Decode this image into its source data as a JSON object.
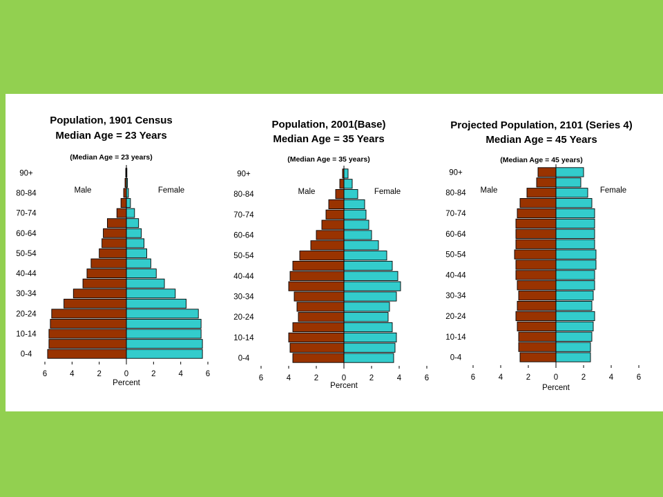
{
  "colors": {
    "male": "#993300",
    "female": "#33cccc",
    "background": "#92d050",
    "panel": "#ffffff"
  },
  "chart_data": [
    {
      "type": "bar",
      "title_line1": "Population, 1901 Census",
      "title_line2": "Median Age = 23 Years",
      "subtitle": "(Median Age = 23 years)",
      "male_label": "Male",
      "female_label": "Female",
      "xlabel": "Percent",
      "xlim": [
        -6,
        6
      ],
      "xticks": [
        6,
        4,
        2,
        0,
        2,
        4,
        6
      ],
      "age_groups": [
        "0-4",
        "5-9",
        "10-14",
        "15-19",
        "20-24",
        "25-29",
        "30-34",
        "35-39",
        "40-44",
        "45-49",
        "50-54",
        "55-59",
        "60-64",
        "65-69",
        "70-74",
        "75-79",
        "80-84",
        "85-89",
        "90+"
      ],
      "visible_tick_labels": [
        "0-4",
        "10-14",
        "20-24",
        "30-34",
        "40-44",
        "50-54",
        "60-64",
        "70-74",
        "80-84",
        "90+"
      ],
      "series": [
        {
          "name": "Male",
          "values": [
            5.8,
            5.7,
            5.7,
            5.6,
            5.5,
            4.6,
            3.9,
            3.2,
            2.9,
            2.6,
            2.0,
            1.8,
            1.7,
            1.4,
            0.7,
            0.4,
            0.2,
            0.1,
            0.05
          ]
        },
        {
          "name": "Female",
          "values": [
            5.6,
            5.6,
            5.5,
            5.5,
            5.3,
            4.4,
            3.6,
            2.8,
            2.2,
            1.8,
            1.5,
            1.3,
            1.1,
            0.9,
            0.6,
            0.3,
            0.15,
            0.08,
            0.04
          ]
        }
      ]
    },
    {
      "type": "bar",
      "title_line1": "Population, 2001(Base)",
      "title_line2": "Median Age = 35 Years",
      "subtitle": "(Median Age = 35 years)",
      "male_label": "Male",
      "female_label": "Female",
      "xlabel": "Percent",
      "xlim": [
        -6,
        6
      ],
      "xticks": [
        6,
        4,
        2,
        0,
        2,
        4,
        6
      ],
      "age_groups": [
        "0-4",
        "5-9",
        "10-14",
        "15-19",
        "20-24",
        "25-29",
        "30-34",
        "35-39",
        "40-44",
        "45-49",
        "50-54",
        "55-59",
        "60-64",
        "65-69",
        "70-74",
        "75-79",
        "80-84",
        "85-89",
        "90+"
      ],
      "visible_tick_labels": [
        "0-4",
        "10-14",
        "20-24",
        "30-34",
        "40-44",
        "50-54",
        "60-64",
        "70-74",
        "80-84",
        "90+"
      ],
      "series": [
        {
          "name": "Male",
          "values": [
            3.7,
            3.9,
            4.0,
            3.7,
            3.3,
            3.4,
            3.6,
            4.0,
            3.9,
            3.7,
            3.2,
            2.4,
            2.0,
            1.6,
            1.3,
            1.1,
            0.6,
            0.3,
            0.1
          ]
        },
        {
          "name": "Female",
          "values": [
            3.6,
            3.7,
            3.8,
            3.5,
            3.2,
            3.3,
            3.8,
            4.1,
            3.9,
            3.5,
            3.1,
            2.5,
            2.0,
            1.8,
            1.6,
            1.5,
            1.0,
            0.6,
            0.3
          ]
        }
      ]
    },
    {
      "type": "bar",
      "title_line1": "Projected Population, 2101 (Series 4)",
      "title_line2": "Median Age = 45 Years",
      "subtitle": "(Median Age = 45 years)",
      "male_label": "Male",
      "female_label": "Female",
      "xlabel": "Percent",
      "xlim": [
        -6,
        6
      ],
      "xticks": [
        6,
        4,
        2,
        0,
        2,
        4,
        6
      ],
      "age_groups": [
        "0-4",
        "5-9",
        "10-14",
        "15-19",
        "20-24",
        "25-29",
        "30-34",
        "35-39",
        "40-44",
        "45-49",
        "50-54",
        "55-59",
        "60-64",
        "65-69",
        "70-74",
        "75-79",
        "80-84",
        "85-89",
        "90+"
      ],
      "visible_tick_labels": [
        "0-4",
        "10-14",
        "20-24",
        "30-34",
        "40-44",
        "50-54",
        "60-64",
        "70-74",
        "80-84",
        "90+"
      ],
      "series": [
        {
          "name": "Male",
          "values": [
            2.6,
            2.7,
            2.7,
            2.8,
            2.9,
            2.8,
            2.7,
            2.8,
            2.9,
            2.9,
            3.0,
            2.9,
            2.9,
            2.9,
            2.8,
            2.6,
            2.1,
            1.4,
            1.3
          ]
        },
        {
          "name": "Female",
          "values": [
            2.5,
            2.5,
            2.6,
            2.7,
            2.8,
            2.6,
            2.7,
            2.8,
            2.8,
            2.9,
            2.9,
            2.8,
            2.8,
            2.8,
            2.8,
            2.6,
            2.3,
            1.8,
            2.0
          ]
        }
      ]
    }
  ]
}
